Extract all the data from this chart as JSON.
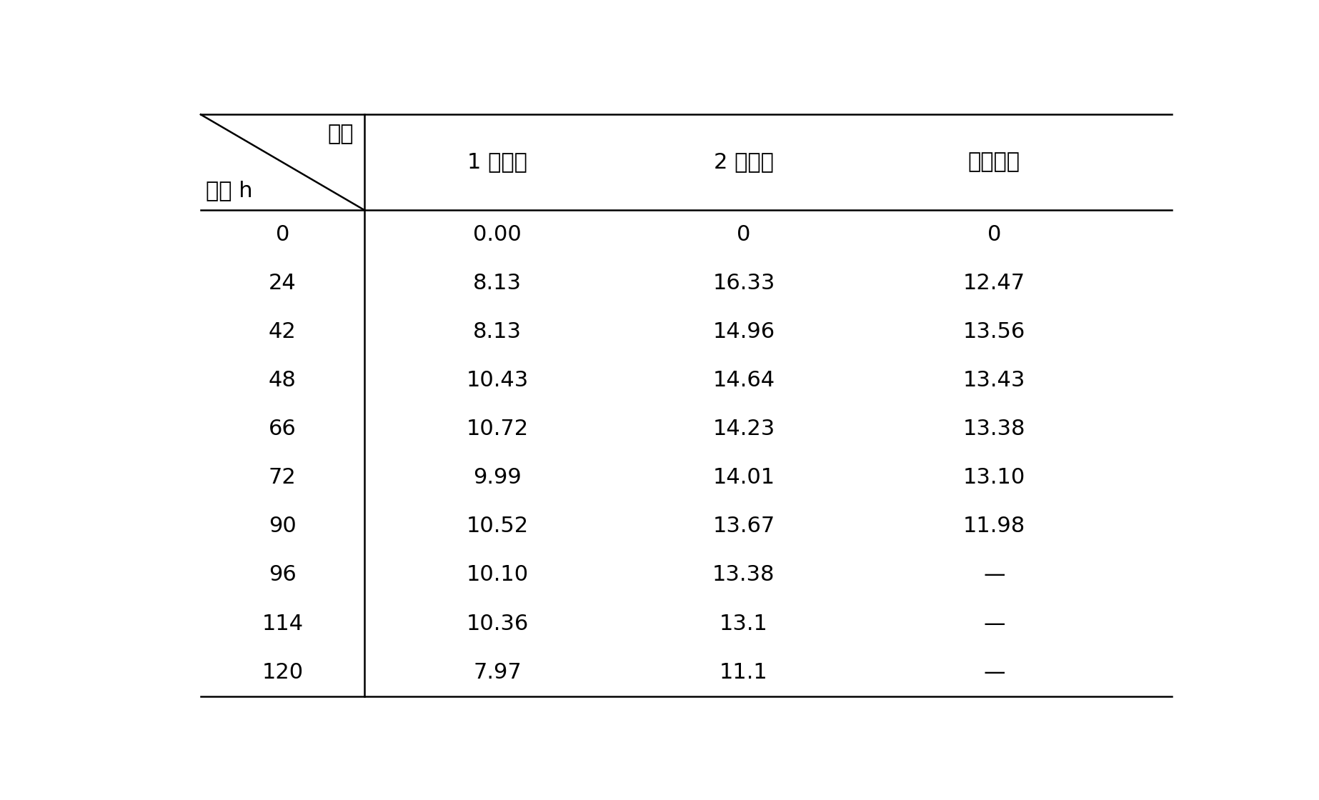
{
  "header_row1": "菌种",
  "header_row2": "时间 h",
  "col_headers": [
    "1 号菌株",
    "2 号菌株",
    "三台酒厂"
  ],
  "time_col": [
    "0",
    "24",
    "42",
    "48",
    "66",
    "72",
    "90",
    "96",
    "114",
    "120"
  ],
  "col1": [
    "0.00",
    "8.13",
    "8.13",
    "10.43",
    "10.72",
    "9.99",
    "10.52",
    "10.10",
    "10.36",
    "7.97"
  ],
  "col2": [
    "0",
    "16.33",
    "14.96",
    "14.64",
    "14.23",
    "14.01",
    "13.67",
    "13.38",
    "13.1",
    "11.1"
  ],
  "col3": [
    "0",
    "12.47",
    "13.56",
    "13.43",
    "13.38",
    "13.10",
    "11.98",
    "—",
    "—",
    "—"
  ],
  "bg_color": "#ffffff",
  "text_color": "#000000",
  "line_color": "#000000",
  "font_size": 22,
  "header_font_size": 22,
  "fig_width": 18.46,
  "fig_height": 11.2
}
